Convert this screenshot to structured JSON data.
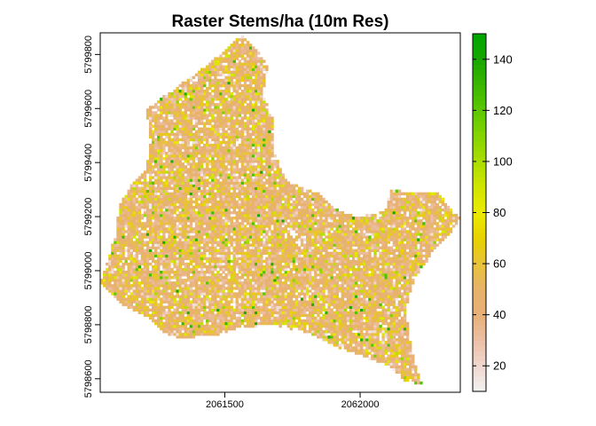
{
  "figure": {
    "title": "Raster Stems/ha (10m Res)"
  },
  "chart_data": {
    "type": "heatmap",
    "title": "Raster Stems/ha (10m Res)",
    "xlabel": "",
    "ylabel": "",
    "x_range": [
      2061040,
      2062370
    ],
    "y_range": [
      5798550,
      5799880
    ],
    "x_ticks": [
      {
        "value": 2061500,
        "label": "2061500"
      },
      {
        "value": 2062000,
        "label": "2062000"
      }
    ],
    "y_ticks": [
      {
        "value": 5798600,
        "label": "5798600"
      },
      {
        "value": 5798800,
        "label": "5798800"
      },
      {
        "value": 5799000,
        "label": "5799000"
      },
      {
        "value": 5799200,
        "label": "5799200"
      },
      {
        "value": 5799400,
        "label": "5799400"
      },
      {
        "value": 5799600,
        "label": "5799600"
      },
      {
        "value": 5799800,
        "label": "5799800"
      }
    ],
    "cell_size_m": 10,
    "value_range": [
      10,
      150
    ],
    "legend_placement": "right",
    "legend_ticks": [
      {
        "value": 20,
        "label": "20"
      },
      {
        "value": 40,
        "label": "40"
      },
      {
        "value": 60,
        "label": "60"
      },
      {
        "value": 80,
        "label": "80"
      },
      {
        "value": 100,
        "label": "100"
      },
      {
        "value": 120,
        "label": "120"
      },
      {
        "value": 140,
        "label": "140"
      }
    ],
    "color_scale": [
      {
        "value": 10,
        "color": "#f2f2f2"
      },
      {
        "value": 20,
        "color": "#f0d7cf"
      },
      {
        "value": 30,
        "color": "#ecc0a6"
      },
      {
        "value": 40,
        "color": "#e8b078"
      },
      {
        "value": 50,
        "color": "#e7b36a"
      },
      {
        "value": 60,
        "color": "#e8c239"
      },
      {
        "value": 70,
        "color": "#e7d200"
      },
      {
        "value": 80,
        "color": "#eaea00"
      },
      {
        "value": 90,
        "color": "#d2e600"
      },
      {
        "value": 100,
        "color": "#aadd00"
      },
      {
        "value": 110,
        "color": "#86d400"
      },
      {
        "value": 120,
        "color": "#5cc800"
      },
      {
        "value": 130,
        "color": "#3ab800"
      },
      {
        "value": 140,
        "color": "#18a600"
      },
      {
        "value": 150,
        "color": "#00a600"
      }
    ],
    "study_area_outline": [
      [
        2061040,
        5798950
      ],
      [
        2061070,
        5799050
      ],
      [
        2061100,
        5799150
      ],
      [
        2061110,
        5799240
      ],
      [
        2061150,
        5799310
      ],
      [
        2061200,
        5799360
      ],
      [
        2061220,
        5799420
      ],
      [
        2061220,
        5799520
      ],
      [
        2061210,
        5799600
      ],
      [
        2061310,
        5799670
      ],
      [
        2061420,
        5799750
      ],
      [
        2061520,
        5799830
      ],
      [
        2061560,
        5799880
      ],
      [
        2061620,
        5799820
      ],
      [
        2061660,
        5799750
      ],
      [
        2061640,
        5799650
      ],
      [
        2061680,
        5799560
      ],
      [
        2061680,
        5799440
      ],
      [
        2061730,
        5799330
      ],
      [
        2061860,
        5799280
      ],
      [
        2061910,
        5799230
      ],
      [
        2061980,
        5799200
      ],
      [
        2062060,
        5799210
      ],
      [
        2062100,
        5799230
      ],
      [
        2062110,
        5799300
      ],
      [
        2062190,
        5799290
      ],
      [
        2062290,
        5799290
      ],
      [
        2062330,
        5799230
      ],
      [
        2062370,
        5799200
      ],
      [
        2062330,
        5799130
      ],
      [
        2062270,
        5799070
      ],
      [
        2062200,
        5798970
      ],
      [
        2062170,
        5798860
      ],
      [
        2062180,
        5798760
      ],
      [
        2062200,
        5798670
      ],
      [
        2062230,
        5798580
      ],
      [
        2062170,
        5798590
      ],
      [
        2062100,
        5798650
      ],
      [
        2062020,
        5798680
      ],
      [
        2061910,
        5798720
      ],
      [
        2061810,
        5798770
      ],
      [
        2061680,
        5798800
      ],
      [
        2061560,
        5798790
      ],
      [
        2061460,
        5798760
      ],
      [
        2061330,
        5798750
      ],
      [
        2061280,
        5798770
      ],
      [
        2061230,
        5798820
      ],
      [
        2061130,
        5798870
      ],
      [
        2061040,
        5798950
      ]
    ]
  }
}
